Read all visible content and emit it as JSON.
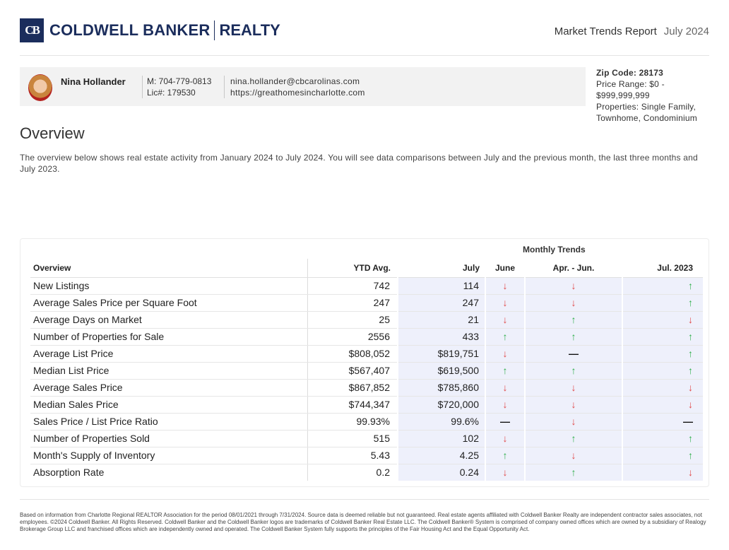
{
  "brand": {
    "mark": "CB",
    "name": "COLDWELL BANKER",
    "sub": "REALTY",
    "color": "#1b2d5c"
  },
  "report": {
    "title": "Market Trends Report",
    "month": "July 2024"
  },
  "agent": {
    "name": "Nina Hollander",
    "phone": "M: 704-779-0813",
    "license": "Lic#: 179530",
    "email": "nina.hollander@cbcarolinas.com",
    "website": "https://greathomesincharlotte.com"
  },
  "criteria": {
    "zip_label": "Zip Code: 28173",
    "price_line1": "Price Range: $0 -",
    "price_line2": "$999,999,999",
    "props_line1": "Properties: Single Family,",
    "props_line2": "Townhome, Condominium"
  },
  "overview": {
    "title": "Overview",
    "text": "The overview below shows real estate activity from January 2024 to July 2024. You will see data comparisons between July and the previous month, the last three months and July 2023."
  },
  "table": {
    "trend_group": "Monthly Trends",
    "headers": [
      "Overview",
      "YTD Avg.",
      "July",
      "June",
      "Apr. - Jun.",
      "Jul. 2023"
    ],
    "rows": [
      {
        "label": "New Listings",
        "ytd": "742",
        "july": "114",
        "june": "down",
        "apr_jun": "down",
        "jul_2023": "up"
      },
      {
        "label": "Average Sales Price per Square Foot",
        "ytd": "247",
        "july": "247",
        "june": "down",
        "apr_jun": "down",
        "jul_2023": "up"
      },
      {
        "label": "Average Days on Market",
        "ytd": "25",
        "july": "21",
        "june": "down",
        "apr_jun": "up",
        "jul_2023": "down"
      },
      {
        "label": "Number of Properties for Sale",
        "ytd": "2556",
        "july": "433",
        "june": "up",
        "apr_jun": "up",
        "jul_2023": "up"
      },
      {
        "label": "Average List Price",
        "ytd": "$808,052",
        "july": "$819,751",
        "june": "down",
        "apr_jun": "flat",
        "jul_2023": "up"
      },
      {
        "label": "Median List Price",
        "ytd": "$567,407",
        "july": "$619,500",
        "june": "up",
        "apr_jun": "up",
        "jul_2023": "up"
      },
      {
        "label": "Average Sales Price",
        "ytd": "$867,852",
        "july": "$785,860",
        "june": "down",
        "apr_jun": "down",
        "jul_2023": "down"
      },
      {
        "label": "Median Sales Price",
        "ytd": "$744,347",
        "july": "$720,000",
        "june": "down",
        "apr_jun": "down",
        "jul_2023": "down"
      },
      {
        "label": "Sales Price / List Price Ratio",
        "ytd": "99.93%",
        "july": "99.6%",
        "june": "flat",
        "apr_jun": "down",
        "jul_2023": "flat"
      },
      {
        "label": "Number of Properties Sold",
        "ytd": "515",
        "july": "102",
        "june": "down",
        "apr_jun": "up",
        "jul_2023": "up"
      },
      {
        "label": "Month's Supply of Inventory",
        "ytd": "5.43",
        "july": "4.25",
        "june": "up",
        "apr_jun": "down",
        "jul_2023": "up"
      },
      {
        "label": "Absorption Rate",
        "ytd": "0.2",
        "july": "0.24",
        "june": "down",
        "apr_jun": "up",
        "jul_2023": "down"
      }
    ]
  },
  "trend_colors": {
    "up": "#2fae4a",
    "down": "#e04848",
    "flat": "#111111"
  },
  "disclaimer": "Based on information from Charlotte Regional REALTOR Association for the period 08/01/2021 through 7/31/2024. Source data is deemed reliable but not guaranteed. Real estate agents affiliated with Coldwell Banker Realty are independent contractor sales associates, not employees. ©2024 Coldwell Banker. All Rights Reserved. Coldwell Banker and the Coldwell Banker logos are trademarks of Coldwell Banker Real Estate LLC. The Coldwell Banker® System is comprised of company owned offices which are owned by a subsidiary of Realogy Brokerage Group LLC and franchised offices which are independently owned and operated. The Coldwell Banker System fully supports the principles of the Fair Housing Act and the Equal Opportunity Act."
}
